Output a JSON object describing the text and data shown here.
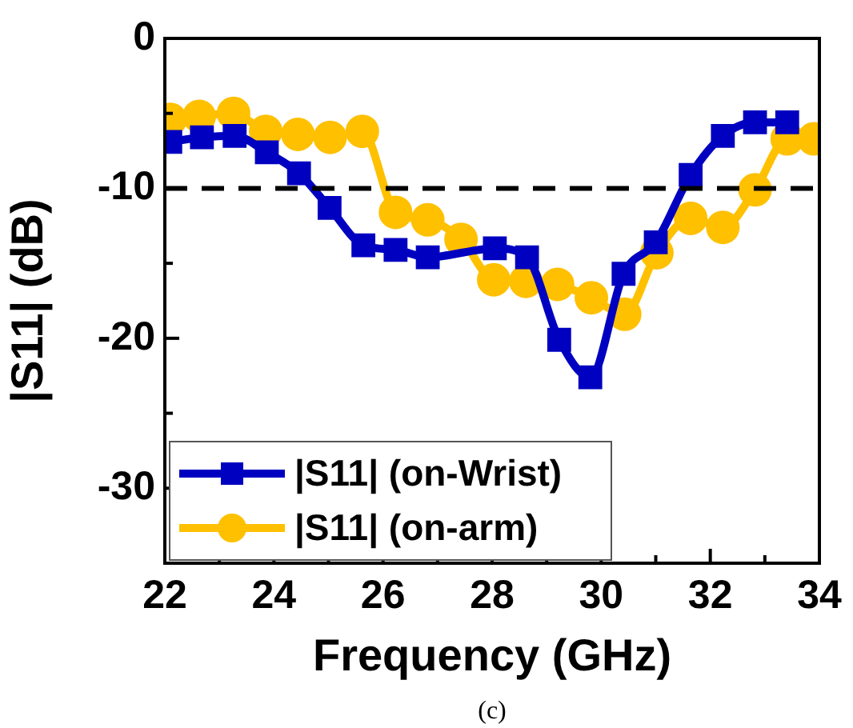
{
  "chart_data": {
    "type": "line",
    "xlabel": "Frequency (GHz)",
    "ylabel": "|S11| (dB)",
    "xlim": [
      22,
      34
    ],
    "ylim": [
      -35,
      0
    ],
    "xticks": [
      22,
      {
        "value": 23,
        "label": null
      },
      24,
      {
        "value": 25,
        "label": null
      },
      26,
      {
        "value": 27,
        "label": null
      },
      28,
      {
        "value": 29,
        "label": null
      },
      30,
      {
        "value": 31,
        "label": null
      },
      32,
      {
        "value": 33,
        "label": null
      },
      34
    ],
    "yticks": [
      {
        "value": -35,
        "label": null
      },
      -30,
      {
        "value": -25,
        "label": null
      },
      -20,
      {
        "value": -15,
        "label": null
      },
      -10,
      {
        "value": -5,
        "label": null
      },
      0
    ],
    "grid": false,
    "legend": "bottom left",
    "line_style": "solid",
    "ref_lines": [
      {
        "axis": "y",
        "value": -10,
        "color": "#000000",
        "line_style": "dashed"
      }
    ],
    "annotations": [
      "(c)"
    ],
    "series": [
      {
        "name": "|S11| (on-Wrist)",
        "color": "#0000c0",
        "marker": "square",
        "x": [
          22.1,
          22.68,
          23.28,
          23.87,
          24.46,
          25.02,
          25.64,
          26.23,
          26.82,
          28.05,
          28.64,
          29.23,
          29.8,
          30.41,
          31.0,
          31.64,
          32.23,
          32.82,
          33.41
        ],
        "values": [
          -6.9,
          -6.6,
          -6.5,
          -7.6,
          -9.0,
          -11.3,
          -13.8,
          -14.1,
          -14.6,
          -14.0,
          -14.6,
          -20.1,
          -22.6,
          -15.7,
          -13.6,
          -9.1,
          -6.5,
          -5.6,
          -5.6
        ]
      },
      {
        "name": "|S11| (on-arm)",
        "color": "#ffc000",
        "marker": "circle",
        "x": [
          22.1,
          22.63,
          23.26,
          23.85,
          24.44,
          25.03,
          25.62,
          26.23,
          26.82,
          27.43,
          28.03,
          28.62,
          29.2,
          29.82,
          30.43,
          31.02,
          31.64,
          32.23,
          32.82,
          33.41,
          33.9
        ],
        "values": [
          -5.4,
          -5.2,
          -5.0,
          -6.2,
          -6.4,
          -6.6,
          -6.2,
          -11.6,
          -12.1,
          -13.4,
          -16.1,
          -16.2,
          -16.4,
          -17.3,
          -18.4,
          -14.3,
          -12.0,
          -12.6,
          -10.1,
          -6.7,
          -6.7
        ]
      }
    ]
  }
}
